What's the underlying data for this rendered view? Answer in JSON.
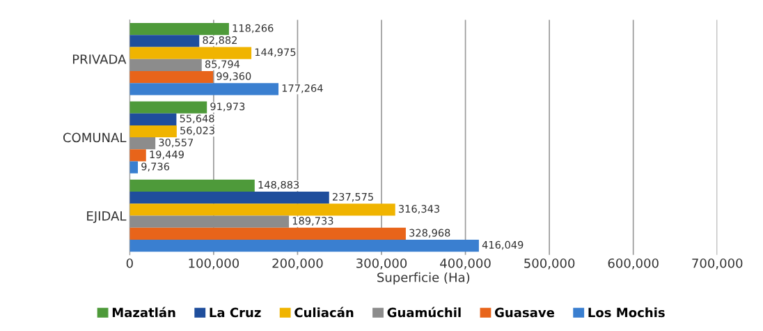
{
  "chart_data": {
    "type": "bar",
    "orientation": "horizontal",
    "xlabel": "Superficie (Ha)",
    "categories": [
      "PRIVADA",
      "COMUNAL",
      "EJIDAL"
    ],
    "series": [
      {
        "name": "Mazatlán",
        "color": "#4e9a3a",
        "values": [
          118266,
          91973,
          148883
        ],
        "value_labels": [
          "118,266",
          "91,973",
          "148,883"
        ]
      },
      {
        "name": "La Cruz",
        "color": "#1f4e9c",
        "values": [
          82882,
          55648,
          237575
        ],
        "value_labels": [
          "82,882",
          "55,648",
          "237,575"
        ]
      },
      {
        "name": "Culiacán",
        "color": "#f0b400",
        "values": [
          144975,
          56023,
          316343
        ],
        "value_labels": [
          "144,975",
          "56,023",
          "316,343"
        ]
      },
      {
        "name": "Guamúchil",
        "color": "#8c8c8c",
        "values": [
          85794,
          30557,
          189733
        ],
        "value_labels": [
          "85,794",
          "30,557",
          "189,733"
        ]
      },
      {
        "name": "Guasave",
        "color": "#e8641a",
        "values": [
          99360,
          19449,
          328968
        ],
        "value_labels": [
          "99,360",
          "19,449",
          "328,968"
        ]
      },
      {
        "name": "Los Mochis",
        "color": "#3a7fd0",
        "values": [
          177264,
          9736,
          416049
        ],
        "value_labels": [
          "177,264",
          "9,736",
          "416,049"
        ]
      }
    ],
    "xlim": [
      0,
      700000
    ],
    "xticks": [
      {
        "value": 0,
        "label": "0"
      },
      {
        "value": 100000,
        "label": "100,000"
      },
      {
        "value": 200000,
        "label": "200,000"
      },
      {
        "value": 300000,
        "label": "300,000"
      },
      {
        "value": 400000,
        "label": "400,000"
      },
      {
        "value": 500000,
        "label": "500,000"
      },
      {
        "value": 600000,
        "label": "600,000"
      },
      {
        "value": 700000,
        "label": "700,000"
      }
    ],
    "grid": "x",
    "legend": "bottom"
  }
}
